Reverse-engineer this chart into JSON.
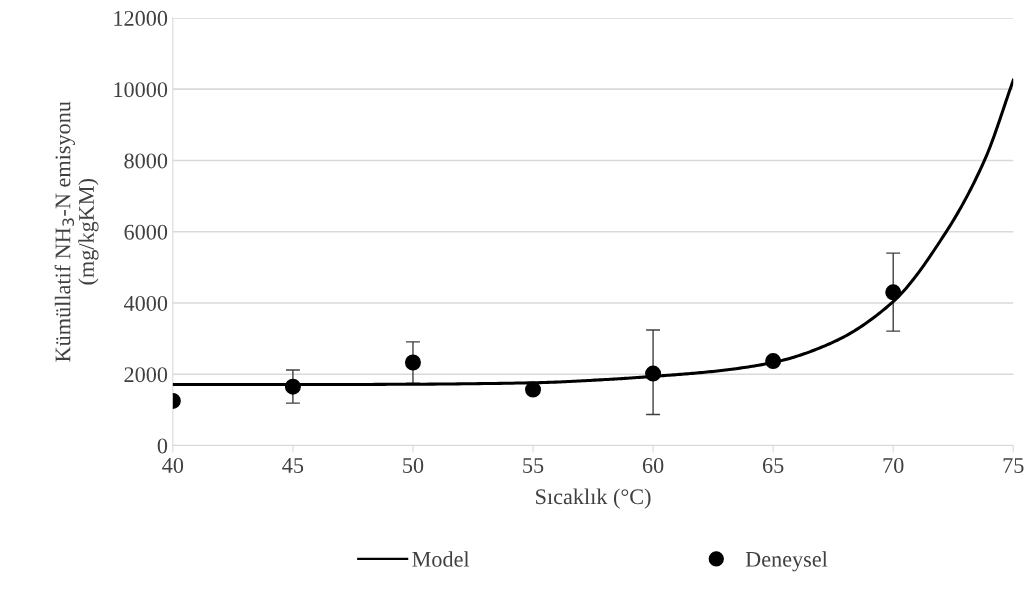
{
  "chart_data": {
    "type": "scatter",
    "xlabel": "Sıcaklık (°C)",
    "ylabel": "Kümüllatif NH$_{3}$-N emisyonu\n(mg/kgKM)",
    "xlim": [
      40,
      75
    ],
    "xticks": [
      40,
      45,
      50,
      55,
      60,
      65,
      70,
      75
    ],
    "ylim": [
      0,
      12000
    ],
    "yticks": [
      0,
      2000,
      4000,
      6000,
      8000,
      10000,
      12000
    ],
    "grid": "y",
    "legend": "bottom",
    "series": [
      {
        "name": "Model",
        "type": "line",
        "color": "#000000",
        "marker": "none",
        "line_style": "solid",
        "x": [
          40,
          45,
          50,
          55,
          58,
          60,
          62.5,
          65,
          67.5,
          70,
          72.2,
          73.8,
          75
        ],
        "values": [
          1710,
          1710,
          1720,
          1760,
          1850,
          1940,
          2080,
          2330,
          2900,
          4040,
          5990,
          8000,
          10250
        ]
      },
      {
        "name": "Deneysel",
        "color": "#000000",
        "marker": "circle",
        "x": [
          40,
          45,
          50,
          55,
          60,
          65,
          70
        ],
        "values": [
          1250,
          1650,
          2330,
          1570,
          2020,
          2370,
          4300
        ],
        "errors": [
          null,
          [
            1190,
            2120
          ],
          [
            1750,
            2910
          ],
          null,
          [
            870,
            3240
          ],
          null,
          [
            3210,
            5400
          ]
        ]
      }
    ]
  }
}
